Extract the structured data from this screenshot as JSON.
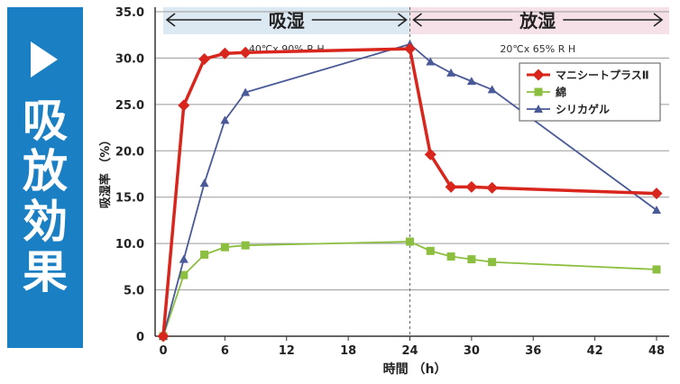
{
  "sidebar": {
    "title_chars": [
      "吸",
      "放",
      "効",
      "果"
    ]
  },
  "chart_data": {
    "type": "line",
    "ylabel": "吸湿率 （%）",
    "xlabel": "時間 （h）",
    "ylim": [
      0,
      35
    ],
    "xlim": [
      0,
      48
    ],
    "yticks": [
      "0",
      "5.0",
      "10.0",
      "15.0",
      "20.0",
      "25.0",
      "30.0",
      "35.0"
    ],
    "xticks": [
      0,
      6,
      12,
      18,
      24,
      30,
      36,
      42,
      48
    ],
    "grid": true,
    "phases": [
      {
        "label": "吸湿",
        "condition": "40℃x 90% R H",
        "x_start": 0,
        "x_end": 24,
        "color": "#dde9f2"
      },
      {
        "label": "放湿",
        "condition": "20℃x 65% R H",
        "x_start": 24,
        "x_end": 48,
        "color": "#f5e1e7"
      }
    ],
    "legend_position": "top-right",
    "series": [
      {
        "name": "マニシートプラスⅡ",
        "color": "#d8261d",
        "marker": "diamond",
        "x": [
          0,
          2,
          4,
          6,
          8,
          24,
          26,
          28,
          30,
          32,
          48
        ],
        "y": [
          0,
          24.9,
          29.9,
          30.5,
          30.6,
          31.0,
          19.6,
          16.1,
          16.1,
          16.0,
          15.4
        ]
      },
      {
        "name": "綿",
        "color": "#8cbf3f",
        "marker": "square",
        "x": [
          0,
          2,
          4,
          6,
          8,
          24,
          26,
          28,
          30,
          32,
          48
        ],
        "y": [
          0,
          6.6,
          8.8,
          9.6,
          9.8,
          10.2,
          9.2,
          8.6,
          8.3,
          8.0,
          7.2
        ]
      },
      {
        "name": "シリカゲル",
        "color": "#4a5a98",
        "marker": "triangle",
        "x": [
          0,
          2,
          4,
          6,
          8,
          24,
          26,
          28,
          30,
          32,
          48
        ],
        "y": [
          0,
          8.3,
          16.5,
          23.3,
          26.3,
          31.5,
          29.6,
          28.4,
          27.5,
          26.6,
          13.6
        ]
      }
    ]
  }
}
